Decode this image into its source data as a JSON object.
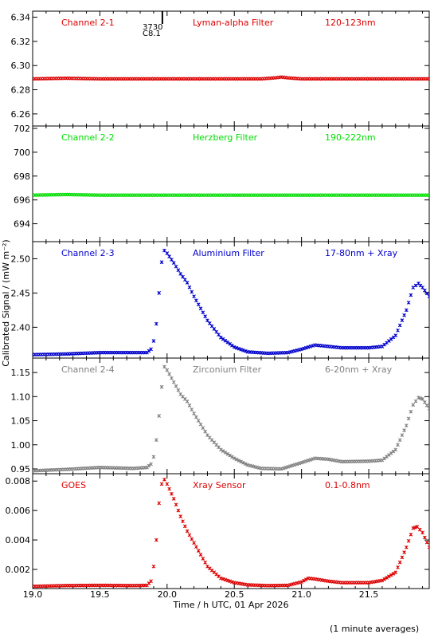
{
  "figure": {
    "ylabel": "Calibrated Signal / (mW m⁻²)",
    "xlabel": "Time / h UTC, 01 Apr 2026",
    "footnote": "(1 minute averages)",
    "marker_labels": [
      "3730",
      "C8.1"
    ]
  },
  "chart_data": [
    {
      "type": "scatter",
      "channel": "Channel 2-1",
      "filter": "Lyman-alpha Filter",
      "band": "120-123nm",
      "color": "#dd0000",
      "ylim": [
        6.25,
        6.345
      ],
      "yticks": [
        "6.26",
        "6.28",
        "6.30",
        "6.32",
        "6.34"
      ],
      "points": [
        [
          19.0,
          6.289
        ],
        [
          19.25,
          6.2895
        ],
        [
          19.5,
          6.289
        ],
        [
          19.75,
          6.289
        ],
        [
          20.0,
          6.289
        ],
        [
          20.25,
          6.289
        ],
        [
          20.5,
          6.289
        ],
        [
          20.7,
          6.289
        ],
        [
          20.8,
          6.2898
        ],
        [
          20.85,
          6.2905
        ],
        [
          20.9,
          6.2898
        ],
        [
          21.0,
          6.289
        ],
        [
          21.25,
          6.289
        ],
        [
          21.5,
          6.289
        ],
        [
          21.75,
          6.289
        ],
        [
          21.95,
          6.289
        ]
      ]
    },
    {
      "type": "scatter",
      "channel": "Channel 2-2",
      "filter": "Herzberg Filter",
      "band": "190-222nm",
      "color": "#00dd00",
      "ylim": [
        692.5,
        702.2
      ],
      "yticks": [
        "694",
        "696",
        "698",
        "700",
        "702"
      ],
      "points": [
        [
          19.0,
          696.4
        ],
        [
          19.25,
          696.45
        ],
        [
          19.5,
          696.4
        ],
        [
          19.75,
          696.4
        ],
        [
          20.0,
          696.4
        ],
        [
          20.25,
          696.4
        ],
        [
          20.5,
          696.4
        ],
        [
          20.75,
          696.4
        ],
        [
          21.0,
          696.4
        ],
        [
          21.25,
          696.4
        ],
        [
          21.5,
          696.4
        ],
        [
          21.75,
          696.4
        ],
        [
          21.95,
          696.4
        ]
      ]
    },
    {
      "type": "scatter",
      "channel": "Channel 2-3",
      "filter": "Aluminium Filter",
      "band": "17-80nm + Xray",
      "color": "#0000cc",
      "ylim": [
        2.355,
        2.525
      ],
      "yticks": [
        "2.40",
        "2.45",
        "2.50"
      ],
      "points": [
        [
          19.0,
          2.36
        ],
        [
          19.25,
          2.361
        ],
        [
          19.5,
          2.363
        ],
        [
          19.75,
          2.363
        ],
        [
          19.85,
          2.363
        ],
        [
          19.88,
          2.368
        ],
        [
          19.9,
          2.38
        ],
        [
          19.92,
          2.405
        ],
        [
          19.94,
          2.45
        ],
        [
          19.96,
          2.495
        ],
        [
          19.98,
          2.512
        ],
        [
          20.0,
          2.508
        ],
        [
          20.05,
          2.494
        ],
        [
          20.1,
          2.478
        ],
        [
          20.15,
          2.465
        ],
        [
          20.2,
          2.445
        ],
        [
          20.3,
          2.41
        ],
        [
          20.4,
          2.385
        ],
        [
          20.5,
          2.371
        ],
        [
          20.6,
          2.364
        ],
        [
          20.75,
          2.362
        ],
        [
          20.9,
          2.363
        ],
        [
          21.0,
          2.368
        ],
        [
          21.1,
          2.374
        ],
        [
          21.2,
          2.372
        ],
        [
          21.3,
          2.37
        ],
        [
          21.5,
          2.37
        ],
        [
          21.6,
          2.372
        ],
        [
          21.7,
          2.388
        ],
        [
          21.78,
          2.425
        ],
        [
          21.83,
          2.458
        ],
        [
          21.87,
          2.464
        ],
        [
          21.9,
          2.458
        ],
        [
          21.95,
          2.445
        ]
      ]
    },
    {
      "type": "scatter",
      "channel": "Channel 2-4",
      "filter": "Zirconium Filter",
      "band": "6-20nm + Xray",
      "color": "#808080",
      "ylim": [
        0.94,
        1.18
      ],
      "yticks": [
        "0.95",
        "1.00",
        "1.05",
        "1.10",
        "1.15"
      ],
      "points": [
        [
          19.0,
          0.946
        ],
        [
          19.25,
          0.949
        ],
        [
          19.5,
          0.953
        ],
        [
          19.75,
          0.951
        ],
        [
          19.85,
          0.953
        ],
        [
          19.88,
          0.96
        ],
        [
          19.9,
          0.975
        ],
        [
          19.92,
          1.01
        ],
        [
          19.94,
          1.06
        ],
        [
          19.96,
          1.12
        ],
        [
          19.98,
          1.162
        ],
        [
          20.0,
          1.155
        ],
        [
          20.05,
          1.13
        ],
        [
          20.1,
          1.105
        ],
        [
          20.15,
          1.09
        ],
        [
          20.2,
          1.065
        ],
        [
          20.3,
          1.02
        ],
        [
          20.4,
          0.99
        ],
        [
          20.5,
          0.972
        ],
        [
          20.6,
          0.958
        ],
        [
          20.7,
          0.951
        ],
        [
          20.85,
          0.95
        ],
        [
          21.0,
          0.963
        ],
        [
          21.1,
          0.972
        ],
        [
          21.2,
          0.97
        ],
        [
          21.3,
          0.965
        ],
        [
          21.5,
          0.966
        ],
        [
          21.6,
          0.968
        ],
        [
          21.7,
          0.99
        ],
        [
          21.78,
          1.04
        ],
        [
          21.83,
          1.083
        ],
        [
          21.87,
          1.098
        ],
        [
          21.9,
          1.095
        ],
        [
          21.95,
          1.075
        ]
      ]
    },
    {
      "type": "scatter",
      "channel": "GOES",
      "filter": "Xray Sensor",
      "band": "0.1-0.8nm",
      "color": "#dd0000",
      "ylim": [
        0.0007,
        0.0085
      ],
      "yticks": [
        "0.002",
        "0.004",
        "0.006",
        "0.008"
      ],
      "points": [
        [
          19.0,
          0.00085
        ],
        [
          19.25,
          0.0009
        ],
        [
          19.5,
          0.00092
        ],
        [
          19.75,
          0.0009
        ],
        [
          19.85,
          0.00092
        ],
        [
          19.88,
          0.0012
        ],
        [
          19.9,
          0.0022
        ],
        [
          19.92,
          0.004
        ],
        [
          19.94,
          0.0065
        ],
        [
          19.96,
          0.0078
        ],
        [
          19.98,
          0.0081
        ],
        [
          20.0,
          0.0078
        ],
        [
          20.05,
          0.0068
        ],
        [
          20.1,
          0.0056
        ],
        [
          20.15,
          0.0046
        ],
        [
          20.2,
          0.0038
        ],
        [
          20.3,
          0.0022
        ],
        [
          20.4,
          0.0014
        ],
        [
          20.5,
          0.0011
        ],
        [
          20.6,
          0.00095
        ],
        [
          20.75,
          0.0009
        ],
        [
          20.9,
          0.00092
        ],
        [
          21.0,
          0.00115
        ],
        [
          21.05,
          0.0014
        ],
        [
          21.1,
          0.00135
        ],
        [
          21.2,
          0.0012
        ],
        [
          21.3,
          0.0011
        ],
        [
          21.5,
          0.0011
        ],
        [
          21.6,
          0.00125
        ],
        [
          21.7,
          0.0018
        ],
        [
          21.78,
          0.0035
        ],
        [
          21.83,
          0.0048
        ],
        [
          21.86,
          0.0049
        ],
        [
          21.9,
          0.0045
        ],
        [
          21.95,
          0.0035
        ]
      ]
    }
  ],
  "x_axis": {
    "xlim": [
      19.0,
      21.95
    ],
    "ticks": [
      "19.0",
      "19.5",
      "20.0",
      "20.5",
      "21.0",
      "21.5"
    ]
  }
}
